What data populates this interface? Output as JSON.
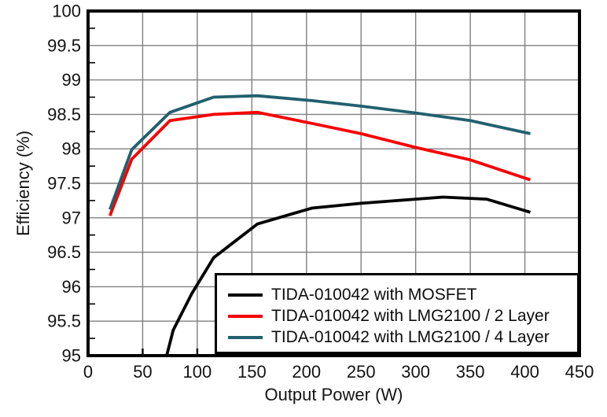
{
  "figure": {
    "background": "#ffffff"
  },
  "chart_data": {
    "type": "line",
    "title": "",
    "xlabel": "Output Power (W)",
    "ylabel": "Efficiency (%)",
    "xlim": [
      0,
      450
    ],
    "ylim": [
      95,
      100
    ],
    "x_ticks": [
      0,
      50,
      100,
      150,
      200,
      250,
      300,
      350,
      400,
      450
    ],
    "y_ticks": [
      95,
      95.5,
      96,
      96.5,
      97,
      97.5,
      98,
      98.5,
      99,
      99.5,
      100
    ],
    "y_minor_tick_step": 0.25,
    "grid": true,
    "legend_position": "inside-bottom-right",
    "series": [
      {
        "name": "TIDA-010042 with MOSFET",
        "color": "#000000",
        "points": [
          [
            72,
            95.0
          ],
          [
            78,
            95.37
          ],
          [
            95,
            95.9
          ],
          [
            115,
            96.42
          ],
          [
            155,
            96.91
          ],
          [
            205,
            97.14
          ],
          [
            250,
            97.21
          ],
          [
            300,
            97.27
          ],
          [
            325,
            97.3
          ],
          [
            365,
            97.27
          ],
          [
            405,
            97.08
          ]
        ]
      },
      {
        "name": "TIDA-010042 with LMG2100 / 2 Layer",
        "color": "#f40000",
        "points": [
          [
            20,
            97.03
          ],
          [
            40,
            97.85
          ],
          [
            75,
            98.41
          ],
          [
            115,
            98.5
          ],
          [
            155,
            98.53
          ],
          [
            205,
            98.37
          ],
          [
            250,
            98.22
          ],
          [
            300,
            98.02
          ],
          [
            350,
            97.84
          ],
          [
            405,
            97.55
          ]
        ]
      },
      {
        "name": "TIDA-010042 with LMG2100 / 4 Layer",
        "color": "#21606f",
        "points": [
          [
            20,
            97.12
          ],
          [
            40,
            97.99
          ],
          [
            75,
            98.53
          ],
          [
            115,
            98.75
          ],
          [
            155,
            98.77
          ],
          [
            205,
            98.7
          ],
          [
            250,
            98.62
          ],
          [
            300,
            98.52
          ],
          [
            350,
            98.41
          ],
          [
            405,
            98.22
          ]
        ]
      }
    ],
    "styles": {
      "grid_color": "#7f7f7f",
      "axis_color": "#000000",
      "tick_label_color": "#141414",
      "line_width": 3.8,
      "tick_label_size": 22
    }
  }
}
